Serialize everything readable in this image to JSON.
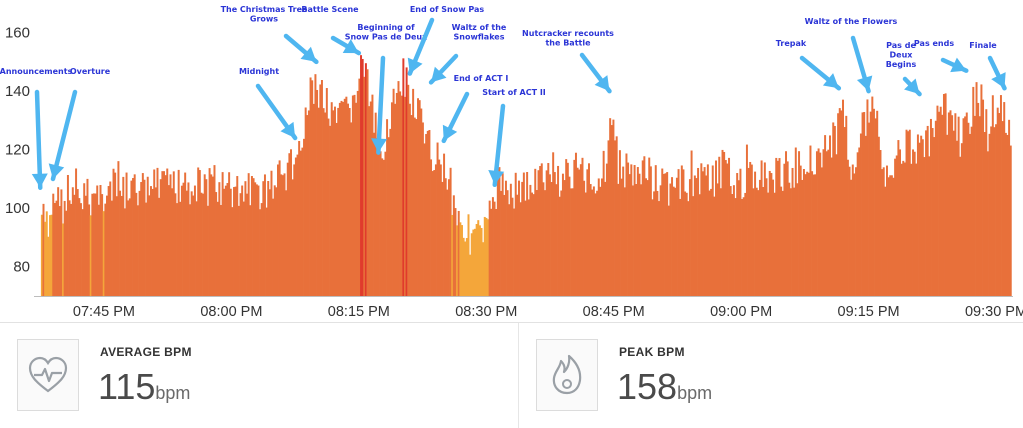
{
  "chart_data": {
    "type": "bar",
    "title": "",
    "xlabel": "",
    "ylabel": "",
    "ylim": [
      70,
      165
    ],
    "xlim_minutes_after_1930": [
      7,
      122
    ],
    "y_ticks": [
      "80",
      "100",
      "120",
      "140",
      "160"
    ],
    "y_tick_values": [
      80,
      100,
      120,
      140,
      160
    ],
    "x_ticks": [
      "07:45 PM",
      "08:00 PM",
      "08:15 PM",
      "08:30 PM",
      "08:45 PM",
      "09:00 PM",
      "09:15 PM",
      "09:30 PM"
    ],
    "x_tick_values": [
      15,
      30,
      45,
      60,
      75,
      90,
      105,
      120
    ],
    "colors": {
      "low": "#f4a63a",
      "mid": "#e8703a",
      "high": "#e03b2c",
      "arrow": "#4fb6f0",
      "annotation": "#2b35d6"
    },
    "series_envelope": {
      "minutes_after_1930": [
        7.5,
        8.5,
        9,
        10,
        12,
        15,
        20,
        25,
        28,
        30,
        33,
        35,
        37,
        38.5,
        39.5,
        40.5,
        42,
        44,
        45,
        45.5,
        46.5,
        47.5,
        49,
        50.5,
        51.5,
        53,
        55,
        56.5,
        58,
        60,
        60.8,
        61.5,
        64,
        67,
        70,
        73,
        74,
        74.6,
        75.5,
        78,
        82,
        86,
        90,
        94,
        98,
        101,
        102,
        102.5,
        103,
        105,
        106,
        106.5,
        108,
        110,
        111.5,
        113,
        114,
        116,
        117,
        118,
        119,
        120,
        121,
        121.8
      ],
      "bpm": [
        106,
        98,
        112,
        108,
        110,
        112,
        113,
        115,
        114,
        113,
        112,
        115,
        120,
        130,
        150,
        145,
        135,
        141,
        150,
        158,
        140,
        125,
        143,
        147,
        142,
        128,
        122,
        105,
        98,
        98,
        110,
        115,
        113,
        117,
        118,
        117,
        122,
        138,
        122,
        117,
        114,
        118,
        117,
        118,
        123,
        130,
        140,
        125,
        123,
        140,
        140,
        120,
        123,
        129,
        127,
        134,
        140,
        130,
        140,
        146,
        132,
        139,
        140,
        125
      ]
    },
    "annotations": [
      {
        "label": "Announcements",
        "x": 7.5,
        "y": 107
      },
      {
        "label": "Overture",
        "x": 9,
        "y": 110
      },
      {
        "label": "Midnight",
        "x": 37.5,
        "y": 124
      },
      {
        "label": "The Christmas Tree Grows",
        "x": 40,
        "y": 150
      },
      {
        "label": "Battle Scene",
        "x": 45,
        "y": 153
      },
      {
        "label": "Beginning of Snow Pas de Deux",
        "x": 47.3,
        "y": 119
      },
      {
        "label": "End of Snow Pas",
        "x": 51,
        "y": 146
      },
      {
        "label": "Waltz of the Snowflakes",
        "x": 53.5,
        "y": 143
      },
      {
        "label": "End of ACT I",
        "x": 55,
        "y": 123
      },
      {
        "label": "Start of ACT II",
        "x": 61,
        "y": 108
      },
      {
        "label": "Nutcracker recounts the Battle",
        "x": 74.5,
        "y": 140
      },
      {
        "label": "Trepak",
        "x": 101.5,
        "y": 141
      },
      {
        "label": "Waltz of the Flowers",
        "x": 105,
        "y": 140
      },
      {
        "label": "Pas de Deux Begins",
        "x": 111,
        "y": 139
      },
      {
        "label": "Pas ends",
        "x": 116.5,
        "y": 147
      },
      {
        "label": "Finale",
        "x": 121,
        "y": 141
      }
    ]
  },
  "stats": {
    "average": {
      "label": "AVERAGE BPM",
      "value": "115",
      "unit": "bpm",
      "icon": "heart-pulse-icon"
    },
    "peak": {
      "label": "PEAK BPM",
      "value": "158",
      "unit": "bpm",
      "icon": "flame-icon"
    }
  }
}
